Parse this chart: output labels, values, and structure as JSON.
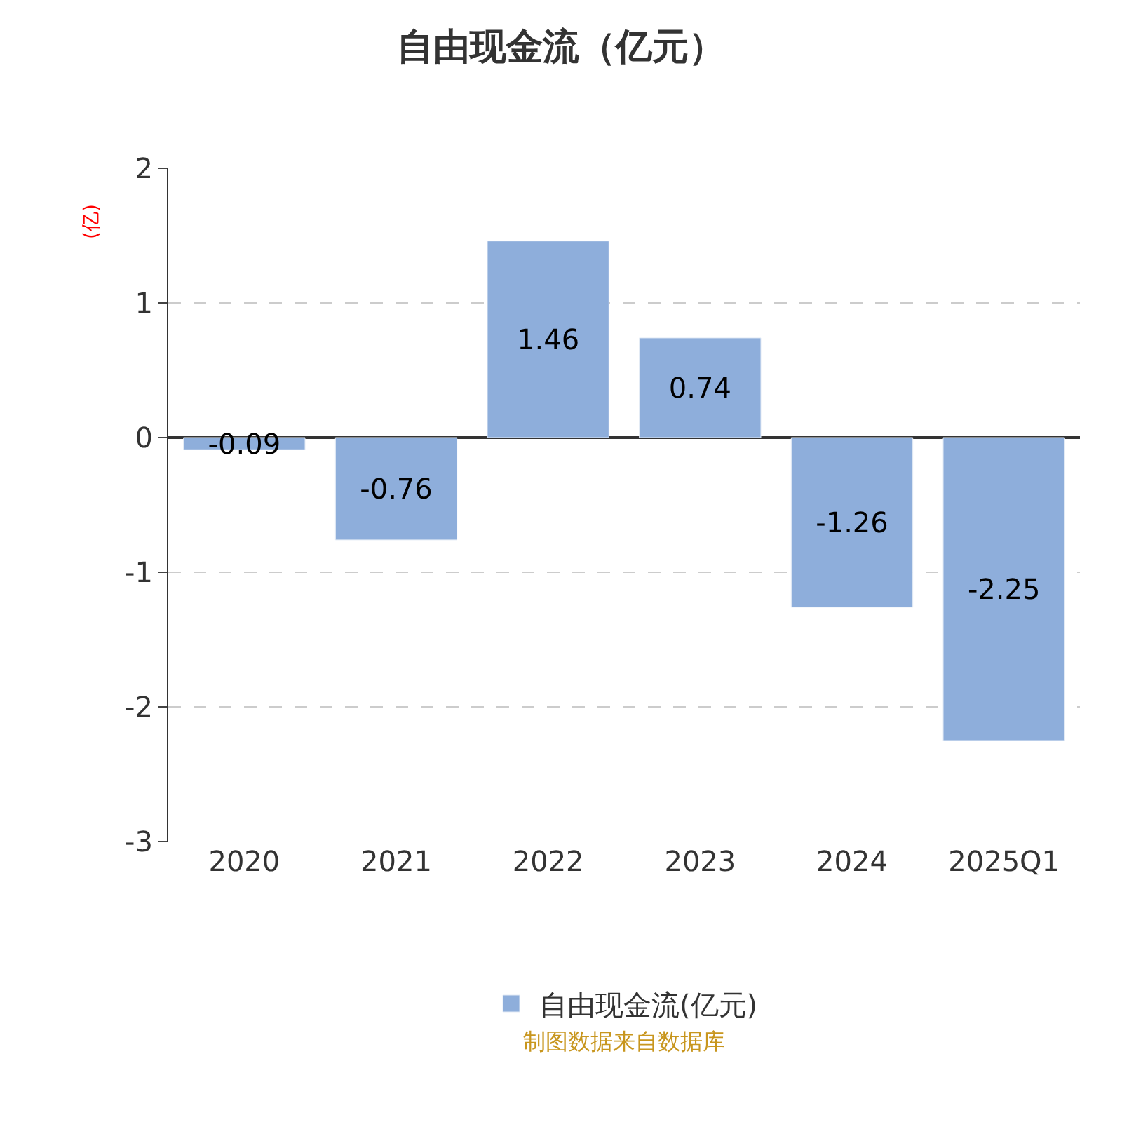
{
  "chart_data": {
    "type": "bar",
    "title": "自由现金流（亿元）",
    "ylabel": "(亿)",
    "categories": [
      "2020",
      "2021",
      "2022",
      "2023",
      "2024",
      "2025Q1"
    ],
    "series": [
      {
        "name": "自由现金流(亿元)",
        "color": "#8eaedb",
        "values": [
          -0.09,
          -0.76,
          1.46,
          0.74,
          -1.26,
          -2.25
        ]
      }
    ],
    "ylim": [
      -3,
      2
    ],
    "yticks": [
      -3,
      -2,
      -1,
      0,
      1,
      2
    ],
    "grid": "y",
    "legend": "bottom",
    "data_labels": true,
    "annotations": [
      "制图数据来自数据库"
    ]
  }
}
